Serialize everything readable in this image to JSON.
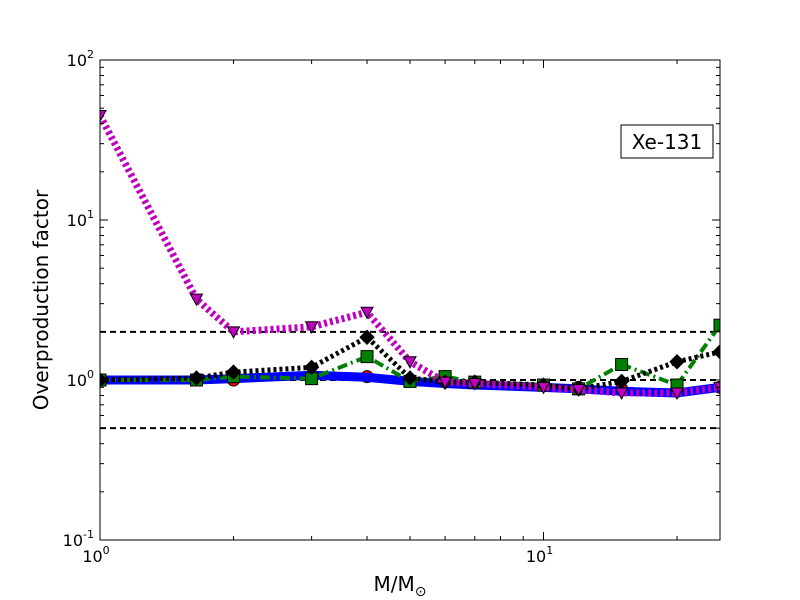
{
  "chart_data": {
    "type": "line",
    "title": "",
    "xlabel": "M/M",
    "xlabel_sub": "⊙",
    "ylabel": "Overproduction factor",
    "xscale": "log",
    "yscale": "log",
    "xlim": [
      1,
      25
    ],
    "ylim": [
      0.1,
      100
    ],
    "grid": false,
    "annotation": "Xe-131",
    "x_ticks": [
      {
        "value": 1,
        "base": "10",
        "exp": "0"
      },
      {
        "value": 10,
        "base": "10",
        "exp": "1"
      }
    ],
    "y_ticks": [
      {
        "value": 0.1,
        "base": "10",
        "exp": "-1"
      },
      {
        "value": 1,
        "base": "10",
        "exp": "0"
      },
      {
        "value": 10,
        "base": "10",
        "exp": "1"
      },
      {
        "value": 100,
        "base": "10",
        "exp": "2"
      }
    ],
    "reference_lines": [
      0.5,
      1,
      2
    ],
    "series": [
      {
        "color": "#ff0000",
        "style": "solid",
        "marker": "circle",
        "x": [
          1,
          1.65,
          2,
          3,
          4,
          5,
          6,
          7,
          10,
          12,
          15,
          20,
          25
        ],
        "y": [
          1.0,
          1.0,
          1.0,
          1.05,
          1.05,
          1.0,
          0.98,
          0.97,
          0.92,
          0.9,
          0.88,
          0.85,
          0.9
        ]
      },
      {
        "color": "#0000ff",
        "style": "solid",
        "marker": "none",
        "x": [
          1,
          1.65,
          2,
          3,
          4,
          5,
          6,
          7,
          10,
          12,
          15,
          20,
          25
        ],
        "y": [
          1.0,
          1.0,
          1.02,
          1.07,
          1.04,
          0.98,
          0.95,
          0.93,
          0.9,
          0.88,
          0.85,
          0.83,
          0.9
        ]
      },
      {
        "color": "#008000",
        "style": "dashdot",
        "marker": "square",
        "x": [
          1,
          1.65,
          2,
          3,
          4,
          5,
          6,
          7,
          10,
          12,
          15,
          20,
          25
        ],
        "y": [
          1.0,
          1.0,
          1.05,
          1.02,
          1.4,
          0.98,
          1.05,
          0.97,
          0.93,
          0.88,
          1.25,
          0.93,
          2.2
        ]
      },
      {
        "color": "#000000",
        "style": "dotted",
        "marker": "diamond",
        "x": [
          1,
          1.65,
          2,
          3,
          4,
          5,
          6,
          7,
          10,
          12,
          15,
          20,
          25
        ],
        "y": [
          1.0,
          1.03,
          1.12,
          1.2,
          1.85,
          1.03,
          0.97,
          0.97,
          0.93,
          0.88,
          0.98,
          1.3,
          1.5
        ]
      },
      {
        "color": "#bf00bf",
        "style": "dotted",
        "marker": "triangle-down",
        "x": [
          1,
          1.65,
          2,
          3,
          4,
          5,
          6,
          7,
          10,
          12,
          15,
          20,
          25
        ],
        "y": [
          45,
          3.2,
          2.0,
          2.15,
          2.65,
          1.3,
          0.97,
          0.95,
          0.9,
          0.87,
          0.83,
          0.83,
          0.9
        ]
      }
    ]
  }
}
